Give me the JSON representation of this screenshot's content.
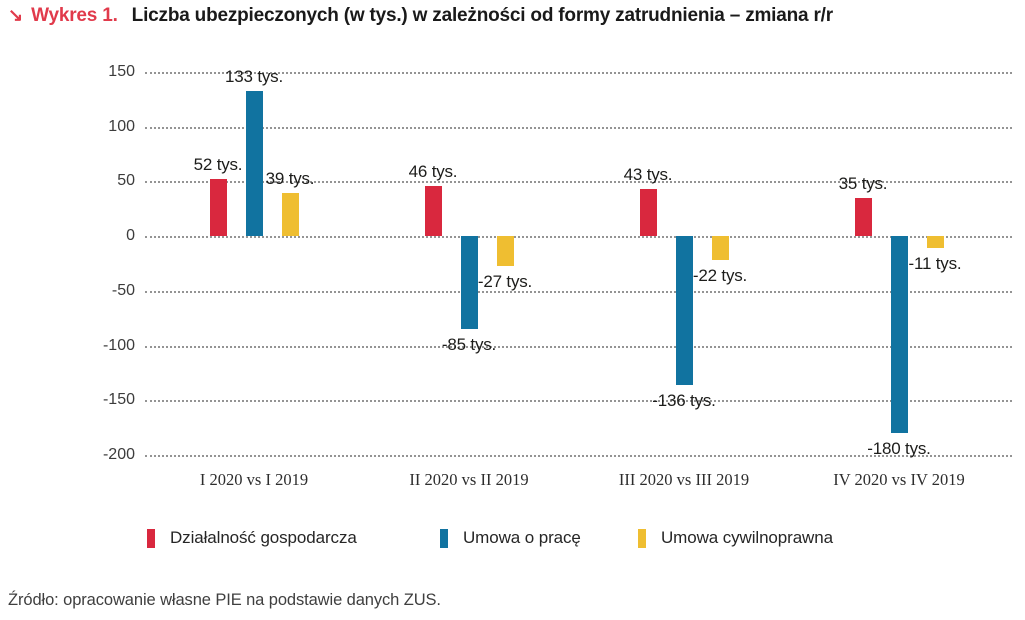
{
  "header": {
    "arrow": "↘",
    "label": "Wykres 1.",
    "title": "Liczba ubezpieczonych (w tys.) w zależności od formy zatrudnienia – zmiana r/r"
  },
  "chart_data": {
    "type": "bar",
    "title": "Liczba ubezpieczonych (w tys.) w zależności od formy zatrudnienia – zmiana r/r",
    "categories": [
      "I 2020 vs I 2019",
      "II 2020 vs II 2019",
      "III 2020 vs III 2019",
      "IV 2020 vs IV 2019"
    ],
    "series": [
      {
        "name": "Działalność gospodarcza",
        "color": "#d9283e",
        "values": [
          52,
          46,
          43,
          35
        ],
        "labels": [
          "52 tys.",
          "46 tys.",
          "43 tys.",
          "35 tys."
        ]
      },
      {
        "name": "Umowa o pracę",
        "color": "#1173a0",
        "values": [
          133,
          -85,
          -136,
          -180
        ],
        "labels": [
          "133 tys.",
          "-85 tys.",
          "-136 tys.",
          "-180 tys."
        ]
      },
      {
        "name": "Umowa cywilnoprawna",
        "color": "#efbe31",
        "values": [
          39,
          -27,
          -22,
          -11
        ],
        "labels": [
          "39 tys.",
          "-27 tys.",
          "-22 tys.",
          "-11 tys."
        ]
      }
    ],
    "yticks": [
      150,
      100,
      50,
      0,
      -50,
      -100,
      -150,
      -200
    ],
    "ylim": [
      -200,
      150
    ],
    "xlabel": "",
    "ylabel": "",
    "grid": "horizontal dotted",
    "legend_position": "bottom"
  },
  "source": "Źródło: opracowanie własne PIE na podstawie danych ZUS.",
  "colors": {
    "accent_red": "#e13a4b",
    "series_red": "#d9283e",
    "series_blue": "#1173a0",
    "series_yellow": "#efbe31",
    "grid_gray": "#949494",
    "text_dark": "#1d1d1b"
  }
}
